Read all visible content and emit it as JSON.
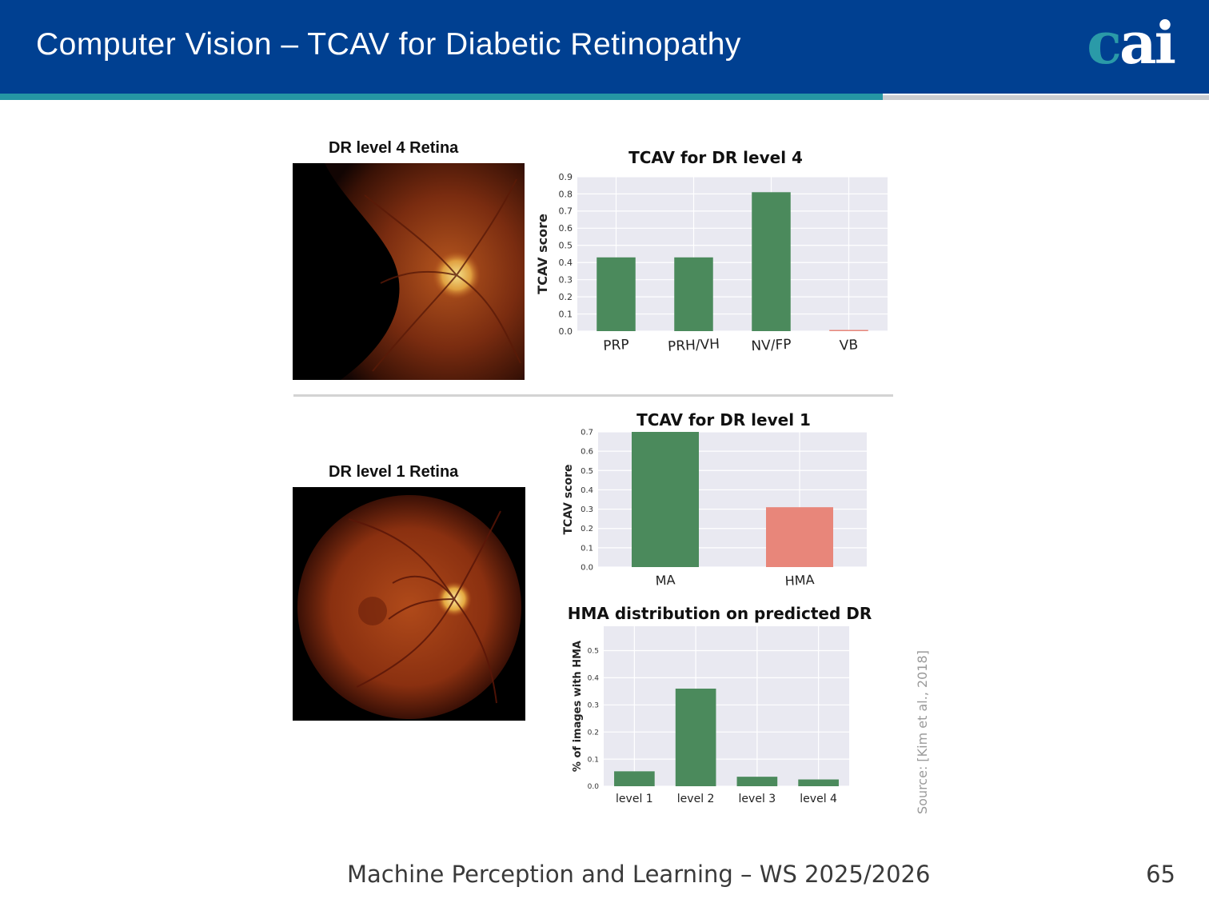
{
  "slide": {
    "title": "Computer Vision – TCAV for Diabetic Retinopathy",
    "logo": {
      "c": "c",
      "ai": "ai"
    },
    "footer": "Machine Perception and Learning – WS 2025/2026",
    "page_number": "65",
    "source": "Source: [Kim et al., 2018]"
  },
  "retina_images": {
    "level4_title": "DR level 4 Retina",
    "level1_title": "DR level 1 Retina"
  },
  "colors": {
    "header": "#004091",
    "accent": "#2596a4",
    "bar_green": "#4b8a5c",
    "bar_salmon": "#e8867a",
    "plot_bg": "#e9e9f1"
  },
  "chart_data": [
    {
      "type": "bar",
      "title": "TCAV for DR level 4",
      "ylabel": "TCAV score",
      "xlabel": "",
      "categories": [
        "PRP",
        "PRH/VH",
        "NV/FP",
        "VB"
      ],
      "values": [
        0.43,
        0.43,
        0.81,
        0.005
      ],
      "bar_colors": [
        "#4b8a5c",
        "#4b8a5c",
        "#4b8a5c",
        "#e8867a"
      ],
      "ylim": [
        0,
        0.9
      ],
      "yticks": [
        "0.0",
        "0.1",
        "0.2",
        "0.3",
        "0.4",
        "0.5",
        "0.6",
        "0.7",
        "0.8",
        "0.9"
      ],
      "grid": true
    },
    {
      "type": "bar",
      "title": "TCAV for DR level 1",
      "ylabel": "TCAV score",
      "xlabel": "",
      "categories": [
        "MA",
        "HMA"
      ],
      "values": [
        0.7,
        0.31
      ],
      "bar_colors": [
        "#4b8a5c",
        "#e8867a"
      ],
      "ylim": [
        0,
        0.7
      ],
      "yticks": [
        "0.0",
        "0.1",
        "0.2",
        "0.3",
        "0.4",
        "0.5",
        "0.6",
        "0.7"
      ],
      "grid": true
    },
    {
      "type": "bar",
      "title": "HMA distribution on predicted DR",
      "ylabel": "% of images with HMA",
      "xlabel": "",
      "categories": [
        "level 1",
        "level 2",
        "level 3",
        "level 4"
      ],
      "values": [
        0.055,
        0.36,
        0.035,
        0.025
      ],
      "bar_colors": [
        "#4b8a5c",
        "#4b8a5c",
        "#4b8a5c",
        "#4b8a5c"
      ],
      "ylim": [
        0,
        0.59
      ],
      "yticks": [
        "0.0",
        "0.1",
        "0.2",
        "0.3",
        "0.4",
        "0.5"
      ],
      "grid": true
    }
  ]
}
